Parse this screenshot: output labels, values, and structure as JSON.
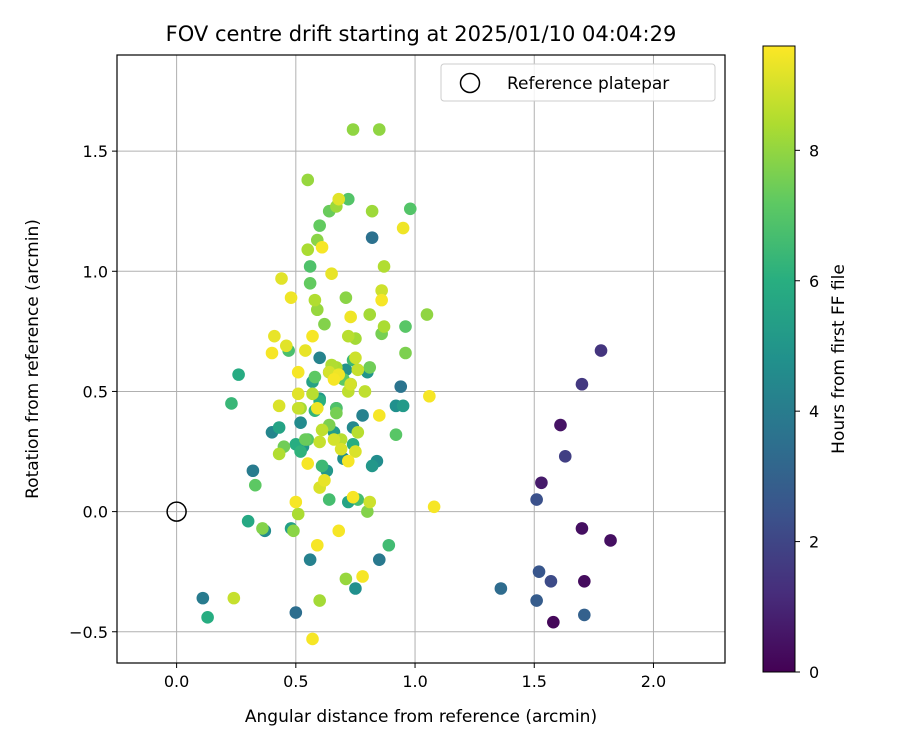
{
  "chart_data": {
    "type": "scatter",
    "title": "FOV centre drift starting at 2025/01/10 04:04:29",
    "xlabel": "Angular distance from reference (arcmin)",
    "ylabel": "Rotation from reference (arcmin)",
    "xlim": [
      -0.25,
      2.3
    ],
    "ylim": [
      -0.63,
      1.9
    ],
    "xticks": [
      0.0,
      0.5,
      1.0,
      1.5,
      2.0
    ],
    "xtick_labels": [
      "0.0",
      "0.5",
      "1.0",
      "1.5",
      "2.0"
    ],
    "yticks": [
      -0.5,
      0.0,
      0.5,
      1.0,
      1.5
    ],
    "ytick_labels": [
      "−0.5",
      "0.0",
      "0.5",
      "1.0",
      "1.5"
    ],
    "grid": true,
    "legend": {
      "placement": "top-right",
      "entries": [
        "Reference platepar"
      ]
    },
    "reference_point": {
      "x": 0.0,
      "y": 0.0,
      "label": "Reference platepar"
    },
    "colorbar": {
      "label": "Hours from first FF file",
      "range": [
        0,
        9.6
      ],
      "ticks": [
        0,
        2,
        4,
        6,
        8
      ],
      "tick_labels": [
        "0",
        "2",
        "4",
        "6",
        "8"
      ],
      "colormap": "viridis"
    },
    "points": [
      [
        1.58,
        -0.46,
        0.2
      ],
      [
        1.71,
        -0.29,
        0.3
      ],
      [
        1.82,
        -0.12,
        0.4
      ],
      [
        1.7,
        -0.07,
        0.4
      ],
      [
        1.61,
        0.36,
        0.5
      ],
      [
        1.53,
        0.12,
        0.7
      ],
      [
        1.78,
        0.67,
        1.5
      ],
      [
        1.7,
        0.53,
        1.6
      ],
      [
        1.63,
        0.23,
        1.8
      ],
      [
        1.57,
        -0.29,
        2.2
      ],
      [
        1.51,
        0.05,
        2.4
      ],
      [
        1.52,
        -0.25,
        2.6
      ],
      [
        1.51,
        -0.37,
        2.8
      ],
      [
        1.71,
        -0.43,
        3.0
      ],
      [
        1.36,
        -0.32,
        3.4
      ],
      [
        0.5,
        -0.42,
        3.5
      ],
      [
        0.82,
        1.14,
        3.6
      ],
      [
        0.94,
        0.52,
        3.7
      ],
      [
        0.64,
        0.58,
        3.8
      ],
      [
        0.85,
        -0.2,
        3.9
      ],
      [
        0.11,
        -0.36,
        4.0
      ],
      [
        0.32,
        0.17,
        4.0
      ],
      [
        0.56,
        -0.2,
        4.2
      ],
      [
        0.78,
        0.4,
        4.2
      ],
      [
        0.67,
        0.43,
        4.3
      ],
      [
        0.6,
        0.64,
        4.3
      ],
      [
        0.4,
        0.33,
        4.4
      ],
      [
        0.74,
        0.35,
        4.5
      ],
      [
        0.37,
        -0.08,
        4.6
      ],
      [
        0.52,
        0.37,
        4.6
      ],
      [
        0.7,
        0.22,
        4.7
      ],
      [
        0.84,
        0.21,
        4.7
      ],
      [
        0.92,
        0.44,
        4.8
      ],
      [
        0.75,
        -0.32,
        4.8
      ],
      [
        0.71,
        0.59,
        4.9
      ],
      [
        0.8,
        0.58,
        5.0
      ],
      [
        0.53,
        0.27,
        5.0
      ],
      [
        0.63,
        0.17,
        5.1
      ],
      [
        0.82,
        0.19,
        5.1
      ],
      [
        0.73,
        0.53,
        5.1
      ],
      [
        0.95,
        0.44,
        5.2
      ],
      [
        0.6,
        0.47,
        5.2
      ],
      [
        0.66,
        0.33,
        5.3
      ],
      [
        0.48,
        -0.07,
        5.4
      ],
      [
        0.57,
        0.54,
        5.5
      ],
      [
        0.72,
        0.04,
        5.6
      ],
      [
        0.43,
        0.35,
        5.6
      ],
      [
        0.3,
        -0.04,
        5.8
      ],
      [
        0.26,
        0.57,
        5.9
      ],
      [
        0.13,
        -0.44,
        6.0
      ],
      [
        0.5,
        0.28,
        6.0
      ],
      [
        0.74,
        0.28,
        6.0
      ],
      [
        0.6,
        0.46,
        6.1
      ],
      [
        0.52,
        0.25,
        6.2
      ],
      [
        0.58,
        0.42,
        6.3
      ],
      [
        0.23,
        0.45,
        6.4
      ],
      [
        0.61,
        0.19,
        6.5
      ],
      [
        0.74,
        0.63,
        6.5
      ],
      [
        0.89,
        -0.14,
        6.6
      ],
      [
        0.76,
        0.05,
        6.7
      ],
      [
        0.64,
        0.05,
        6.7
      ],
      [
        0.47,
        0.67,
        6.8
      ],
      [
        0.56,
        1.02,
        6.9
      ],
      [
        0.67,
        0.43,
        6.9
      ],
      [
        0.98,
        1.26,
        7.0
      ],
      [
        0.72,
        1.3,
        7.0
      ],
      [
        0.55,
        0.3,
        7.0
      ],
      [
        0.92,
        0.32,
        7.1
      ],
      [
        0.96,
        0.77,
        7.1
      ],
      [
        0.33,
        0.11,
        7.2
      ],
      [
        0.7,
        0.55,
        7.2
      ],
      [
        0.58,
        0.56,
        7.2
      ],
      [
        0.56,
        0.95,
        7.3
      ],
      [
        0.6,
        1.19,
        7.3
      ],
      [
        0.54,
        0.3,
        7.4
      ],
      [
        0.64,
        1.25,
        7.4
      ],
      [
        0.81,
        0.6,
        7.5
      ],
      [
        0.45,
        0.27,
        7.5
      ],
      [
        0.86,
        0.74,
        7.6
      ],
      [
        0.67,
        0.41,
        7.6
      ],
      [
        0.64,
        0.36,
        7.7
      ],
      [
        0.96,
        0.66,
        7.7
      ],
      [
        0.36,
        -0.07,
        7.8
      ],
      [
        0.62,
        0.78,
        7.8
      ],
      [
        0.8,
        0.0,
        7.8
      ],
      [
        0.71,
        0.89,
        7.9
      ],
      [
        0.49,
        -0.08,
        7.9
      ],
      [
        0.59,
        1.13,
        7.9
      ],
      [
        1.05,
        0.82,
        8.0
      ],
      [
        0.74,
        1.59,
        8.0
      ],
      [
        0.85,
        1.59,
        8.0
      ],
      [
        0.55,
        1.38,
        8.1
      ],
      [
        0.59,
        0.84,
        8.1
      ],
      [
        0.71,
        -0.28,
        8.1
      ],
      [
        0.67,
        1.27,
        8.2
      ],
      [
        0.82,
        1.25,
        8.2
      ],
      [
        0.75,
        0.72,
        8.3
      ],
      [
        0.81,
        0.82,
        8.3
      ],
      [
        0.52,
        0.43,
        8.3
      ],
      [
        0.6,
        -0.37,
        8.3
      ],
      [
        0.55,
        1.09,
        8.4
      ],
      [
        0.87,
        0.77,
        8.4
      ],
      [
        0.67,
        0.6,
        8.4
      ],
      [
        0.51,
        -0.01,
        8.4
      ],
      [
        0.58,
        0.88,
        8.5
      ],
      [
        0.43,
        0.24,
        8.5
      ],
      [
        0.65,
        0.61,
        8.5
      ],
      [
        0.87,
        1.02,
        8.5
      ],
      [
        0.76,
        0.33,
        8.6
      ],
      [
        0.69,
        0.3,
        8.6
      ],
      [
        0.57,
        0.49,
        8.6
      ],
      [
        0.72,
        0.73,
        8.6
      ],
      [
        0.79,
        0.5,
        8.7
      ],
      [
        0.61,
        0.34,
        8.7
      ],
      [
        0.72,
        0.5,
        8.7
      ],
      [
        0.51,
        0.43,
        8.8
      ],
      [
        0.6,
        0.29,
        8.8
      ],
      [
        0.76,
        0.59,
        8.8
      ],
      [
        0.24,
        -0.36,
        8.8
      ],
      [
        0.75,
        0.64,
        8.9
      ],
      [
        0.81,
        0.04,
        8.9
      ],
      [
        0.86,
        0.92,
        8.9
      ],
      [
        0.64,
        0.58,
        9.0
      ],
      [
        0.66,
        0.3,
        9.0
      ],
      [
        0.73,
        0.53,
        9.0
      ],
      [
        0.43,
        0.44,
        9.1
      ],
      [
        0.69,
        0.26,
        9.1
      ],
      [
        0.6,
        0.1,
        9.1
      ],
      [
        0.75,
        0.25,
        9.1
      ],
      [
        0.51,
        0.49,
        9.2
      ],
      [
        0.68,
        1.3,
        9.2
      ],
      [
        0.46,
        0.69,
        9.2
      ],
      [
        0.44,
        0.97,
        9.2
      ],
      [
        0.65,
        0.99,
        9.3
      ],
      [
        0.41,
        0.73,
        9.3
      ],
      [
        0.62,
        0.13,
        9.3
      ],
      [
        0.54,
        0.67,
        9.3
      ],
      [
        0.48,
        0.89,
        9.4
      ],
      [
        0.59,
        0.43,
        9.4
      ],
      [
        0.68,
        0.57,
        9.4
      ],
      [
        0.73,
        0.81,
        9.4
      ],
      [
        0.95,
        1.18,
        9.4
      ],
      [
        1.06,
        0.48,
        9.5
      ],
      [
        0.55,
        0.2,
        9.5
      ],
      [
        0.66,
        0.55,
        9.5
      ],
      [
        0.51,
        0.58,
        9.5
      ],
      [
        0.78,
        -0.27,
        9.5
      ],
      [
        0.68,
        -0.08,
        9.5
      ],
      [
        0.59,
        -0.14,
        9.5
      ],
      [
        0.74,
        0.06,
        9.5
      ],
      [
        0.5,
        0.04,
        9.5
      ],
      [
        0.85,
        0.4,
        9.5
      ],
      [
        0.61,
        1.1,
        9.5
      ],
      [
        0.57,
        0.73,
        9.5
      ],
      [
        0.86,
        0.88,
        9.5
      ],
      [
        0.4,
        0.66,
        9.5
      ],
      [
        1.08,
        0.02,
        9.5
      ],
      [
        0.72,
        0.21,
        9.5
      ],
      [
        0.57,
        -0.53,
        9.5
      ]
    ]
  }
}
